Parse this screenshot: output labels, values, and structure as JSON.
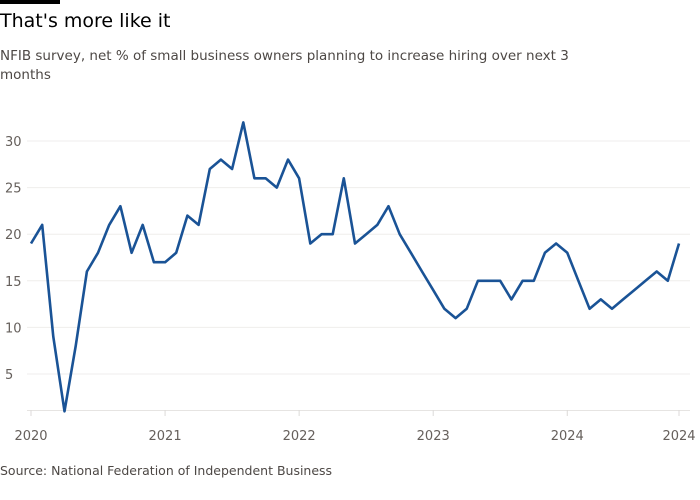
{
  "header": {
    "title": "That's more like it",
    "subtitle": "NFIB survey, net % of small business owners planning to increase hiring over next 3 months"
  },
  "footer": {
    "source": "Source: National Federation of Independent Business"
  },
  "chart_data": {
    "type": "line",
    "title": "That's more like it",
    "subtitle": "NFIB survey, net % of small business owners planning to increase hiring over next 3 months",
    "xlabel": "",
    "ylabel": "",
    "ylim": [
      1,
      32
    ],
    "yticks": [
      5,
      10,
      15,
      20,
      25,
      30
    ],
    "xticks": [
      {
        "x": "2020-01",
        "label": "2020"
      },
      {
        "x": "2021-01",
        "label": "2021"
      },
      {
        "x": "2022-01",
        "label": "2022"
      },
      {
        "x": "2023-01",
        "label": "2023"
      },
      {
        "x": "2024-01",
        "label": "2024"
      },
      {
        "x": "2024-11",
        "label": "2024"
      }
    ],
    "grid": true,
    "color": "#1a5396",
    "series": [
      {
        "x": [
          "2020-01",
          "2020-02",
          "2020-03",
          "2020-04",
          "2020-05",
          "2020-06",
          "2020-07",
          "2020-08",
          "2020-09",
          "2020-10",
          "2020-11",
          "2020-12",
          "2021-01",
          "2021-02",
          "2021-03",
          "2021-04",
          "2021-05",
          "2021-06",
          "2021-07",
          "2021-08",
          "2021-09",
          "2021-10",
          "2021-11",
          "2021-12",
          "2022-01",
          "2022-02",
          "2022-03",
          "2022-04",
          "2022-05",
          "2022-06",
          "2022-07",
          "2022-08",
          "2022-09",
          "2022-10",
          "2022-11",
          "2022-12",
          "2023-01",
          "2023-02",
          "2023-03",
          "2023-04",
          "2023-05",
          "2023-06",
          "2023-07",
          "2023-08",
          "2023-09",
          "2023-10",
          "2023-11",
          "2023-12",
          "2024-01",
          "2024-02",
          "2024-03",
          "2024-04",
          "2024-05",
          "2024-06",
          "2024-07",
          "2024-08",
          "2024-09",
          "2024-10",
          "2024-11"
        ],
        "values": [
          19,
          21,
          9,
          1,
          8,
          16,
          18,
          21,
          23,
          18,
          21,
          17,
          17,
          18,
          22,
          21,
          27,
          28,
          27,
          32,
          26,
          26,
          25,
          28,
          26,
          19,
          20,
          20,
          26,
          19,
          20,
          21,
          23,
          20,
          18,
          16,
          14,
          12,
          11,
          12,
          15,
          15,
          15,
          13,
          15,
          15,
          18,
          19,
          18,
          15,
          12,
          13,
          12,
          13,
          14,
          15,
          16,
          15,
          19
        ]
      }
    ]
  }
}
